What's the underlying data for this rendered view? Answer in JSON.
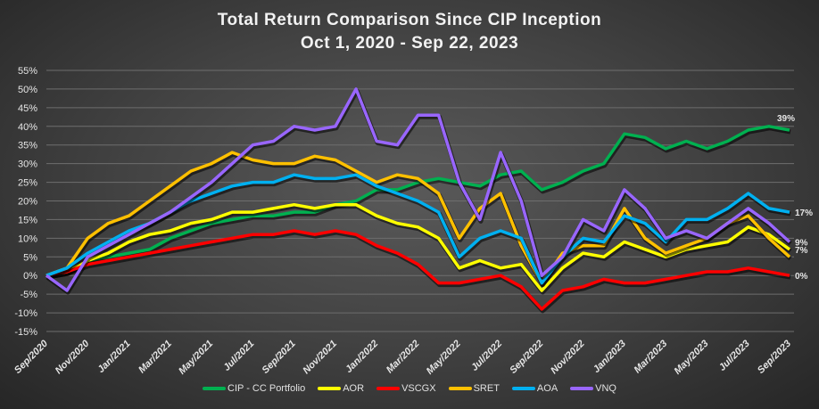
{
  "chart_data": {
    "type": "line",
    "title": "Total Return Comparison Since CIP Inception",
    "subtitle": "Oct 1, 2020 - Sep 22, 2023",
    "xlabel": "",
    "ylabel": "",
    "ylim": [
      -15,
      55
    ],
    "yticks": [
      "55%",
      "50%",
      "45%",
      "40%",
      "35%",
      "30%",
      "25%",
      "20%",
      "15%",
      "10%",
      "5%",
      "0%",
      "-5%",
      "-10%",
      "-15%"
    ],
    "ytick_values": [
      55,
      50,
      45,
      40,
      35,
      30,
      25,
      20,
      15,
      10,
      5,
      0,
      -5,
      -10,
      -15
    ],
    "xticks": [
      "Sep/2020",
      "Nov/2020",
      "Jan/2021",
      "Mar/2021",
      "May/2021",
      "Jul/2021",
      "Sep/2021",
      "Nov/2021",
      "Jan/2022",
      "Mar/2022",
      "May/2022",
      "Jul/2022",
      "Sep/2022",
      "Nov/2022",
      "Jan/2023",
      "Mar/2023",
      "May/2023",
      "Jul/2023",
      "Sep/2023"
    ],
    "x_months": [
      0,
      1,
      2,
      3,
      4,
      5,
      6,
      7,
      8,
      9,
      10,
      11,
      12,
      13,
      14,
      15,
      16,
      17,
      18,
      19,
      20,
      21,
      22,
      23,
      24,
      25,
      26,
      27,
      28,
      29,
      30,
      31,
      32,
      33,
      34,
      35,
      36
    ],
    "grid": true,
    "legend_position": "bottom",
    "series": [
      {
        "name": "CIP - CC Portfolio",
        "color": "#00b050",
        "end_label": "39%",
        "values": [
          0,
          1,
          4,
          5,
          6,
          7,
          10,
          12,
          14,
          15,
          16,
          16,
          17,
          17,
          19,
          20,
          23,
          23,
          25,
          26,
          25,
          24,
          27,
          28,
          23,
          25,
          28,
          30,
          38,
          37,
          34,
          36,
          34,
          36,
          39,
          40,
          39
        ]
      },
      {
        "name": "AOR",
        "color": "#ffff00",
        "end_label": "7%",
        "values": [
          0,
          1,
          4,
          6,
          9,
          11,
          12,
          14,
          15,
          17,
          17,
          18,
          19,
          18,
          19,
          19,
          16,
          14,
          13,
          10,
          2,
          4,
          2,
          3,
          -4,
          2,
          6,
          5,
          9,
          7,
          5,
          7,
          8,
          9,
          13,
          11,
          7
        ]
      },
      {
        "name": "VSCGX",
        "color": "#ff0000",
        "end_label": "0%",
        "values": [
          0,
          1,
          3,
          4,
          5,
          6,
          7,
          8,
          9,
          10,
          11,
          11,
          12,
          11,
          12,
          11,
          8,
          6,
          3,
          -2,
          -2,
          -1,
          0,
          -3,
          -9,
          -4,
          -3,
          -1,
          -2,
          -2,
          -1,
          0,
          1,
          1,
          2,
          1,
          0
        ]
      },
      {
        "name": "SRET",
        "color": "#ffc000",
        "values": [
          0,
          2,
          10,
          14,
          16,
          20,
          24,
          28,
          30,
          33,
          31,
          30,
          30,
          32,
          31,
          28,
          25,
          27,
          26,
          22,
          10,
          18,
          22,
          8,
          -2,
          6,
          8,
          8,
          18,
          10,
          6,
          8,
          10,
          14,
          16,
          10,
          5
        ]
      },
      {
        "name": "AOA",
        "color": "#00b0f0",
        "end_label": "17%",
        "values": [
          0,
          2,
          6,
          9,
          12,
          14,
          17,
          20,
          22,
          24,
          25,
          25,
          27,
          26,
          26,
          27,
          24,
          22,
          20,
          17,
          5,
          10,
          12,
          10,
          -2,
          5,
          10,
          9,
          16,
          14,
          9,
          15,
          15,
          18,
          22,
          18,
          17
        ]
      },
      {
        "name": "VNQ",
        "color": "#9966ff",
        "end_label": "9%",
        "values": [
          0,
          -4,
          5,
          8,
          11,
          14,
          17,
          21,
          25,
          30,
          35,
          36,
          40,
          39,
          40,
          50,
          36,
          35,
          43,
          43,
          25,
          15,
          33,
          20,
          0,
          5,
          15,
          12,
          23,
          18,
          10,
          12,
          10,
          14,
          18,
          14,
          9
        ]
      }
    ]
  }
}
